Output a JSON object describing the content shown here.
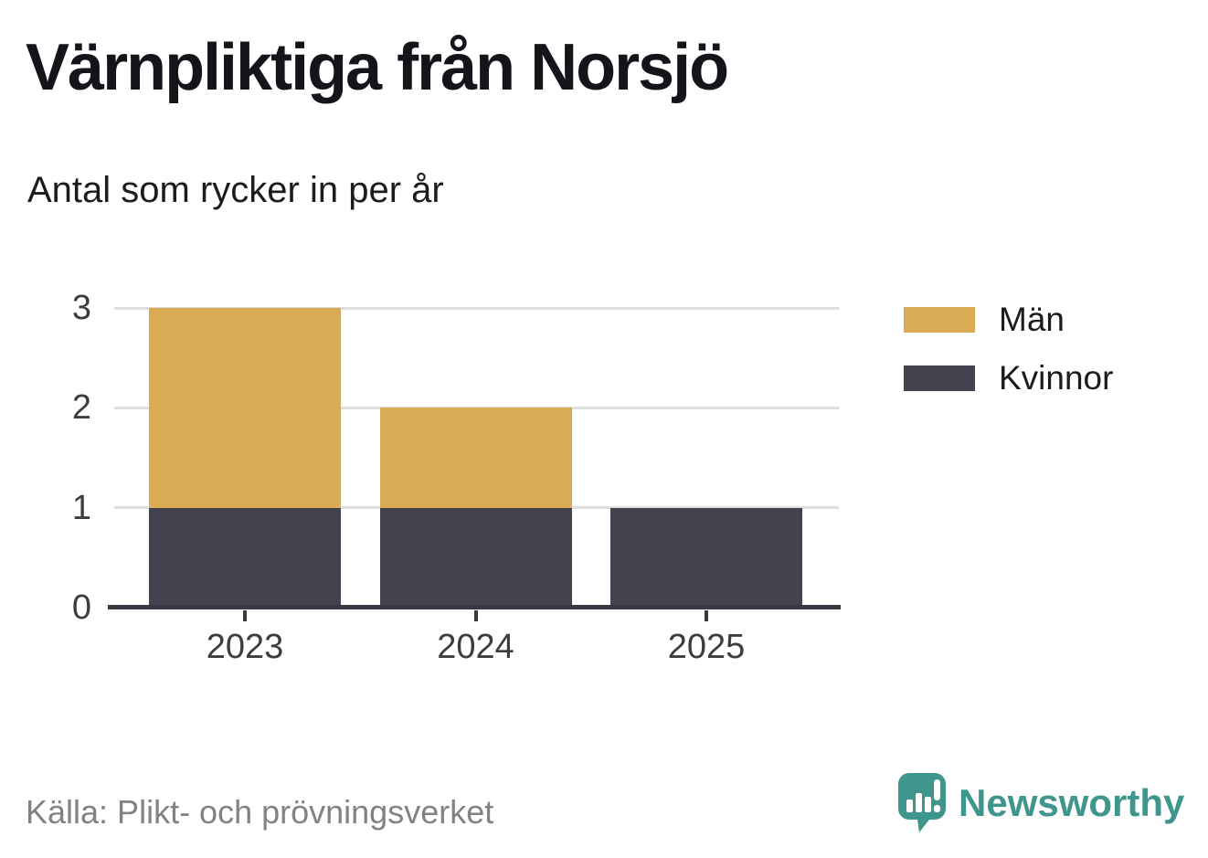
{
  "header": {
    "title": "Värnpliktiga från Norsjö",
    "subtitle": "Antal som rycker in per år"
  },
  "chart_data": {
    "type": "bar",
    "stacked": true,
    "title": "Värnpliktiga från Norsjö",
    "subtitle": "Antal som rycker in per år",
    "categories": [
      "2023",
      "2024",
      "2025"
    ],
    "series": [
      {
        "name": "Män",
        "color": "#d9ab55",
        "values": [
          2,
          1,
          0
        ]
      },
      {
        "name": "Kvinnor",
        "color": "#454250",
        "values": [
          1,
          1,
          1
        ]
      }
    ],
    "stack_order_bottom_to_top": [
      "Kvinnor",
      "Män"
    ],
    "xlabel": "",
    "ylabel": "",
    "ylim": [
      0,
      3
    ],
    "yticks": [
      0,
      1,
      2,
      3
    ],
    "grid": true,
    "legend_position": "right"
  },
  "footer": {
    "source": "Källa: Plikt- och prövningsverket",
    "brand": "Newsworthy"
  },
  "colors": {
    "men": "#d9ab55",
    "women": "#454250",
    "axis": "#3a3843",
    "grid": "#dededf",
    "tick_label": "#3d3d3d",
    "title_text": "#14141a",
    "source_text": "#828282",
    "brand_teal": "#3e968c",
    "background": "#ffffff"
  }
}
